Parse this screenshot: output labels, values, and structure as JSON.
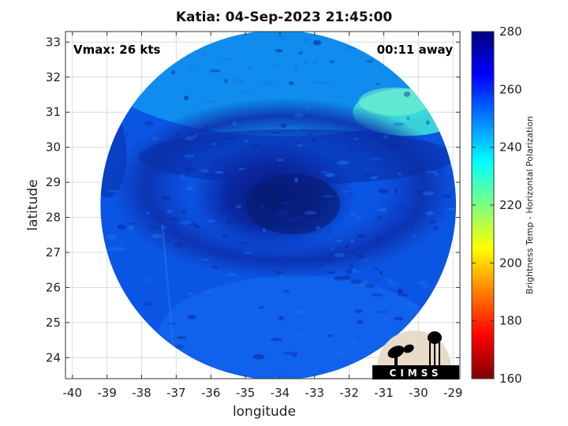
{
  "title": "Katia: 04-Sep-2023 21:45:00",
  "vmax_label": "Vmax: 26 kts",
  "time_label": "00:11 away",
  "logo_text": "CIMSS",
  "map": {
    "xlabel": "longitude",
    "ylabel": "latitude",
    "xlim": [
      -40.2,
      -28.8
    ],
    "ylim": [
      23.4,
      33.3
    ],
    "x_ticks": [
      -40,
      -39,
      -38,
      -37,
      -36,
      -35,
      -34,
      -33,
      -32,
      -31,
      -30,
      -29
    ],
    "y_ticks": [
      24,
      25,
      26,
      27,
      28,
      29,
      30,
      31,
      32,
      33
    ],
    "grid": true,
    "swath_center": [
      -34.05,
      28.35
    ],
    "swath_radius_deg_lat": 4.98,
    "storm_center": [
      -34.2,
      28.6
    ]
  },
  "colorbar": {
    "label": "Brightness Temp - Horizontal Polarization",
    "range": [
      160,
      280
    ],
    "ticks": [
      160,
      180,
      200,
      220,
      240,
      260,
      280
    ],
    "colors": [
      "#7f0000",
      "#ff0000",
      "#ff7f00",
      "#ffff00",
      "#7fff7f",
      "#00ffff",
      "#007fff",
      "#0000ff",
      "#00007f"
    ]
  }
}
